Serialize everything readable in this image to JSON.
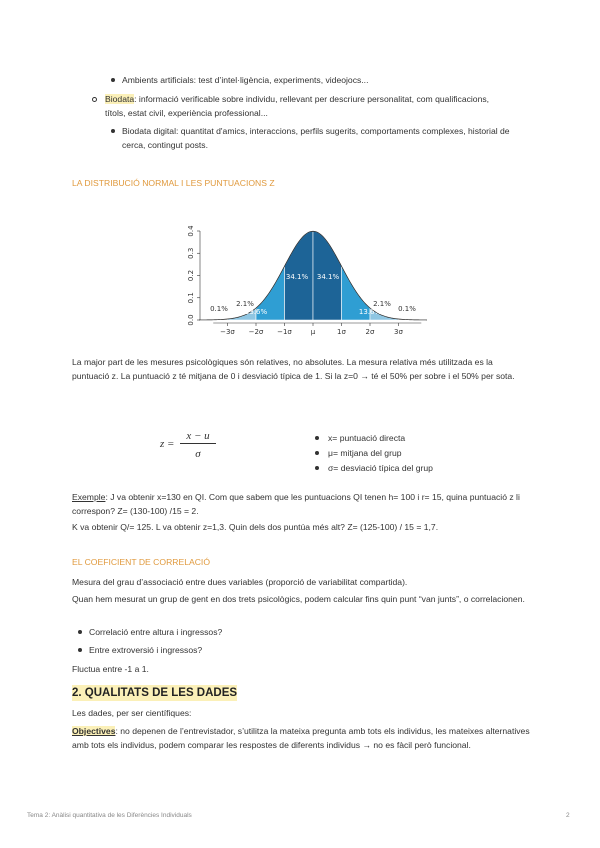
{
  "list1": [
    "Ambients artificials: test d’intel·ligència, experiments, videojocs..."
  ],
  "list2": {
    "term": "Biodata",
    "text": ": informació verificable sobre individu, rellevant per descriure personalitat, com qualificacions, títols, estat civil, experiència professional..."
  },
  "list3": [
    "Biodata digital: quantitat d'amics, interaccions, perfils sugerits, comportaments complexes, historial de cerca, contingut posts."
  ],
  "heading1": "LA DISTRIBUCIÓ NORMAL I LES PUNTUACIONS Z",
  "figure": {
    "ylim": [
      0,
      0.4
    ],
    "yticks": [
      {
        "value": 0,
        "label": "0.0"
      },
      0.1,
      0.2,
      0.3,
      0.4
    ],
    "xtick_labels": [
      "−3σ",
      "−2σ",
      "−1σ",
      "μ",
      "1σ",
      "2σ",
      "3σ"
    ],
    "region_labels": [
      "0.1%",
      "2.1%",
      "13.6%",
      "34.1%",
      "34.1%",
      "13.6%",
      "2.1%",
      "0.1%"
    ]
  },
  "paragraph1": "La major part de les mesures psicològiques són relatives, no absolutes. La mesura relativa més utilitzada es la puntuació z. La puntuació z té mitjana de 0 i desviació típica de 1. Si la z=0 → té el 50% per sobre i el 50% per sota.",
  "formula": {
    "lhs": "z =",
    "numerator": "x − u",
    "denominator": "σ",
    "legend": [
      "x= puntuació directa",
      "μ= mitjana del grup",
      "σ= desviació típica del grup"
    ]
  },
  "example": {
    "term": "Exemple",
    "text": ": J va obtenir x=130 en QI. Com que sabem que les puntuacions QI tenen h= 100 i r= 15, quina puntuació z li correspon? Z= (130-100) /15 = 2."
  },
  "paragraph2": "K va obtenir Q/= 125. L va obtenir z=1,3. Quin dels dos puntúa més alt? Z= (125-100) / 15 = 1,7.",
  "heading2": "EL COEFICIENT DE CORRELACIÓ",
  "paragraph3": "Mesura del grau d’associació entre dues variables (proporció de variabilitat compartida).",
  "paragraph4": "Quan hem mesurat un grup de gent en dos trets psicològics, podem calcular fins quin punt “van junts”, o correlacionen.",
  "list4": [
    "Correlació entre altura i ingressos?",
    "Entre extroversió i ingressos?"
  ],
  "paragraph5": "Fluctua entre -1 a 1.",
  "heading3": "2. QUALITATS DE LES DADES",
  "paragraph6": "Les dades, per ser científiques:",
  "objectives": {
    "term": "Objectives",
    "text": ": no depenen de l’entrevistador, s’utilitza la mateixa pregunta amb tots els individus, les mateixes alternatives amb tots els individus, podem comparar les respostes de diferents individus → no es fàcil però funcional."
  },
  "footer": {
    "title": "Tema 2: Anàlisi quantitativa de les Diferències Individuals",
    "page": "2"
  }
}
